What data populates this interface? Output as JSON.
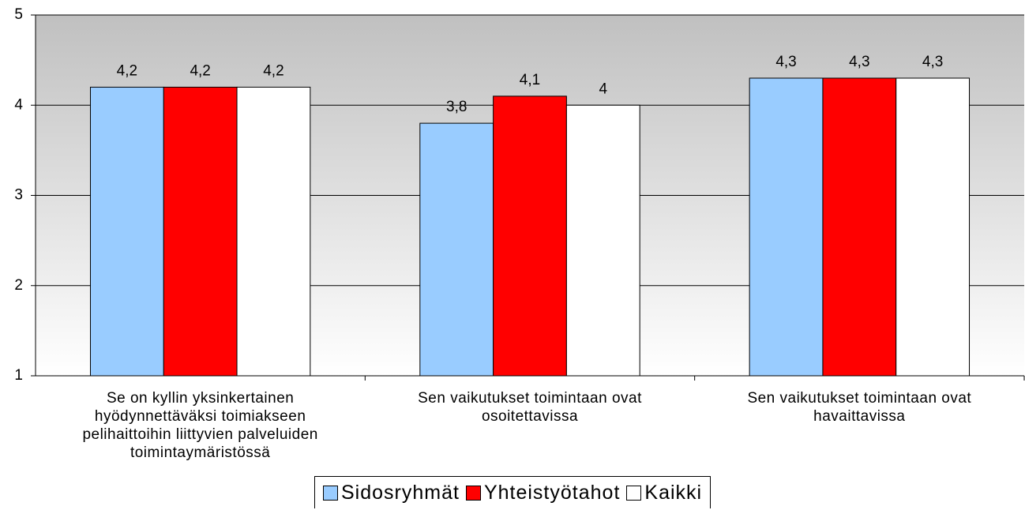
{
  "chart_data": {
    "type": "bar",
    "categories": [
      "Se on kyllin yksinkertainen hyödynnettäväksi toimiakseen pelihaittoihin liittyvien palveluiden toimintaymäristössä",
      "Sen vaikutukset toimintaan ovat osoitettavissa",
      "Sen vaikutukset toimintaan ovat havaittavissa"
    ],
    "series": [
      {
        "name": "Sidosryhmät",
        "color": "#99ccff",
        "values": [
          4.2,
          3.8,
          4.3
        ],
        "value_labels": [
          "4,2",
          "3,8",
          "4,3"
        ]
      },
      {
        "name": "Yhteistyötahot",
        "color": "#ff0000",
        "values": [
          4.2,
          4.1,
          4.3
        ],
        "value_labels": [
          "4,2",
          "4,1",
          "4,3"
        ]
      },
      {
        "name": "Kaikki",
        "color": "#ffffff",
        "values": [
          4.2,
          4,
          4.3
        ],
        "value_labels": [
          "4,2",
          "4",
          "4,3"
        ]
      }
    ],
    "ylim": [
      1,
      5
    ],
    "yticks": [
      1,
      2,
      3,
      4,
      5
    ],
    "grid": true,
    "legend": "bottom"
  }
}
